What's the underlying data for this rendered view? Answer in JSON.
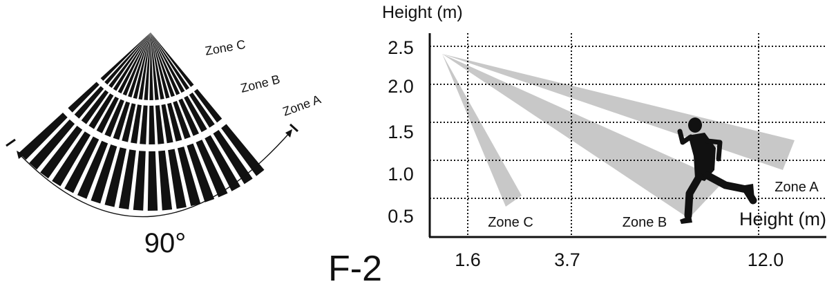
{
  "left_diagram": {
    "zone_labels": [
      "Zone C",
      "Zone B",
      "Zone A"
    ],
    "angle_label": "90°",
    "beam_count": 19
  },
  "figure_label": "F-2",
  "chart": {
    "y_axis_title": "Height (m)",
    "x_axis_title": "Height (m)",
    "y_ticks": [
      "2.5",
      "2.0",
      "1.5",
      "1.0",
      "0.5"
    ],
    "x_ticks": [
      "1.6",
      "3.7",
      "12.0"
    ],
    "zone_labels": [
      "Zone C",
      "Zone B",
      "Zone A"
    ]
  },
  "chart_data": {
    "type": "diagram",
    "title": "",
    "xlabel": "Height (m)",
    "ylabel": "Height (m)",
    "y_tick_values": [
      2.5,
      2.0,
      1.5,
      1.0,
      0.5
    ],
    "x_tick_values": [
      1.6,
      3.7,
      12.0
    ],
    "mount_height": 2.5,
    "zones": [
      {
        "name": "Zone C",
        "reach": 1.6
      },
      {
        "name": "Zone B",
        "reach": 3.7
      },
      {
        "name": "Zone A",
        "reach": 12.0
      }
    ]
  },
  "colors": {
    "ink": "#111111",
    "beam_gray": "#c8c8c8",
    "background": "#ffffff"
  }
}
